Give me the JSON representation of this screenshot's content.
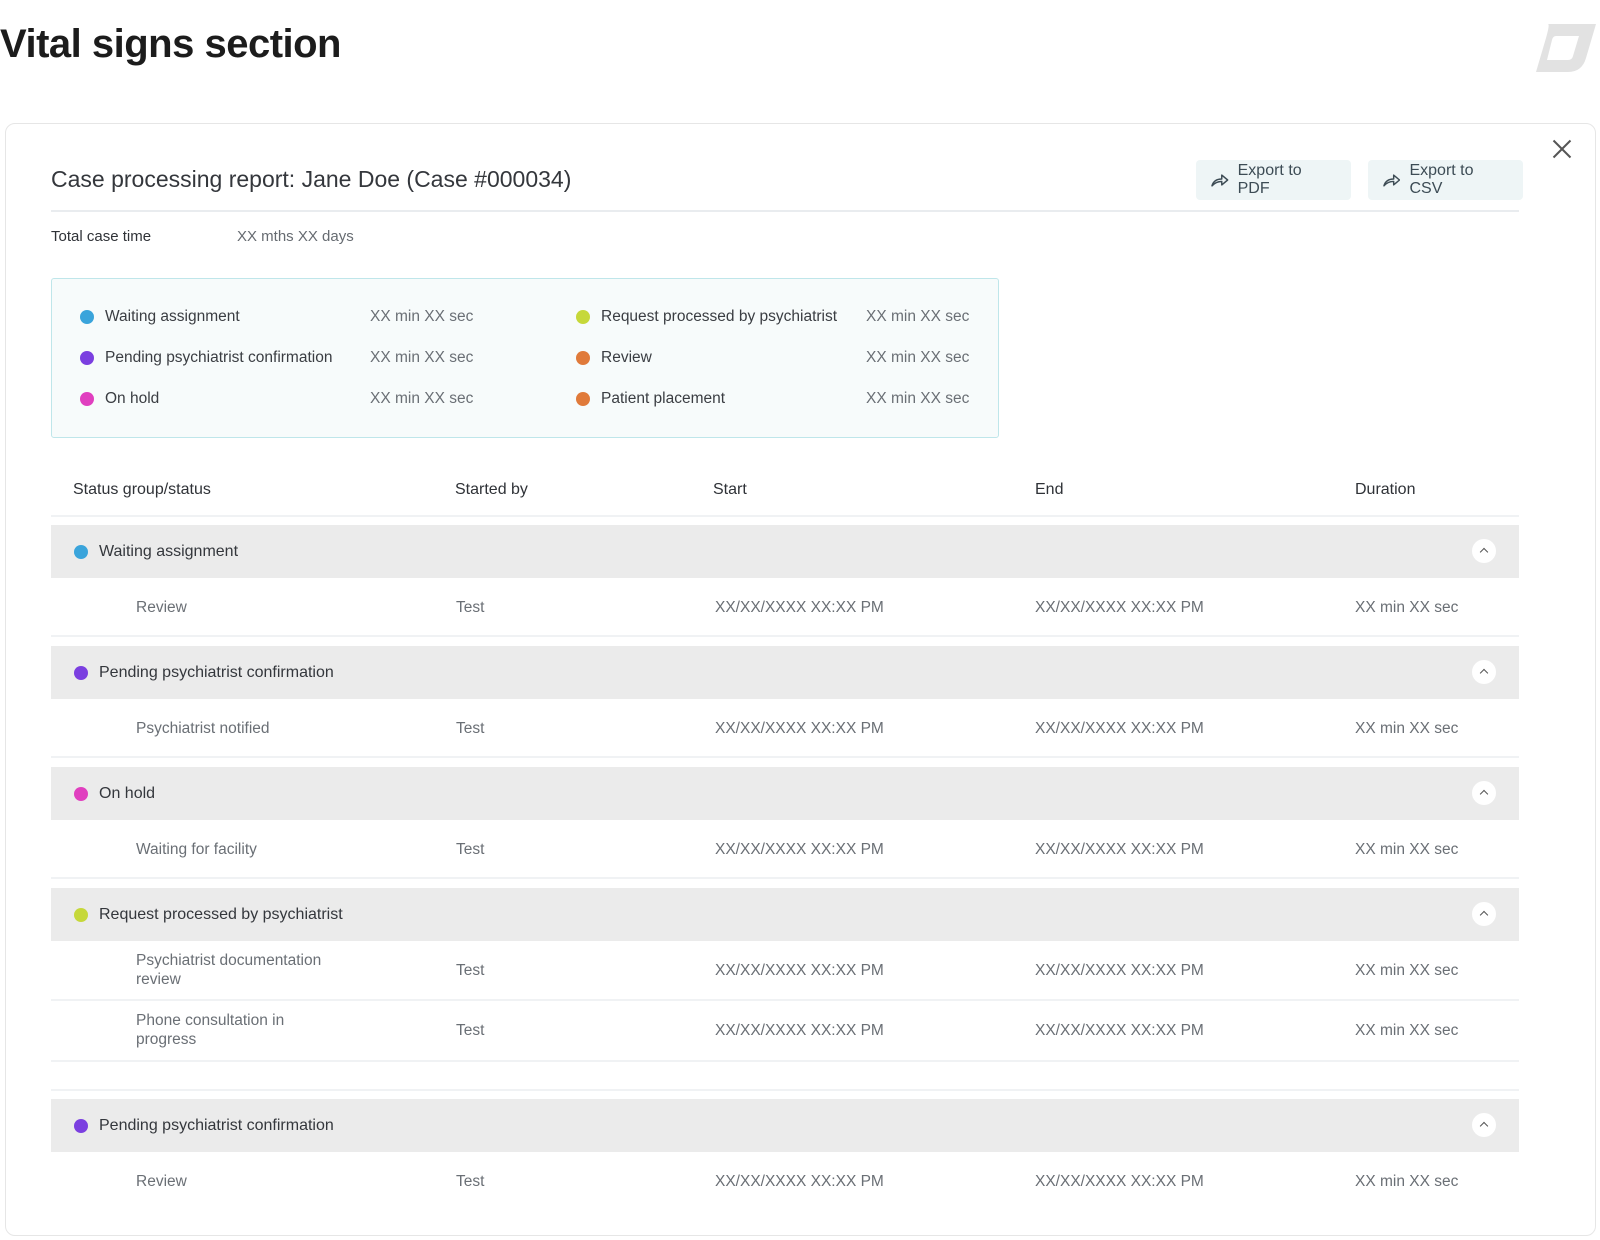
{
  "page_title": "Vital signs section",
  "report": {
    "title": "Case processing report: Jane Doe (Case #000034)",
    "export_pdf": "Export to PDF",
    "export_csv": "Export to CSV",
    "total_label": "Total case time",
    "total_value": "XX mths XX days"
  },
  "colors": {
    "blue": "#3aa4db",
    "purple": "#7b3fe0",
    "pink": "#e03fbf",
    "lime": "#c6d83a",
    "orange": "#e07a3a"
  },
  "summary": [
    {
      "label": "Waiting assignment",
      "value": "XX min XX sec",
      "color": "#3aa4db"
    },
    {
      "label": "Pending psychiatrist confirmation",
      "value": "XX min XX sec",
      "color": "#7b3fe0"
    },
    {
      "label": "On hold",
      "value": "XX min XX sec",
      "color": "#e03fbf"
    },
    {
      "label": "Request processed by psychiatrist",
      "value": "XX min XX sec",
      "color": "#c6d83a"
    },
    {
      "label": "Review",
      "value": "XX min XX sec",
      "color": "#e07a3a"
    },
    {
      "label": "Patient placement",
      "value": "XX min XX sec",
      "color": "#e07a3a"
    }
  ],
  "table": {
    "headers": [
      "Status group/status",
      "Started by",
      "Start",
      "End",
      "Duration"
    ],
    "groups": [
      {
        "label": "Waiting assignment",
        "color": "#3aa4db",
        "rows": [
          {
            "status": "Review",
            "by": "Test",
            "start": "XX/XX/XXXX XX:XX PM",
            "end": "XX/XX/XXXX XX:XX PM",
            "duration": "XX min XX sec"
          }
        ]
      },
      {
        "label": "Pending psychiatrist confirmation",
        "color": "#7b3fe0",
        "rows": [
          {
            "status": "Psychiatrist notified",
            "by": "Test",
            "start": "XX/XX/XXXX XX:XX PM",
            "end": "XX/XX/XXXX XX:XX PM",
            "duration": "XX min XX sec"
          }
        ]
      },
      {
        "label": "On hold",
        "color": "#e03fbf",
        "rows": [
          {
            "status": "Waiting for facility",
            "by": "Test",
            "start": "XX/XX/XXXX XX:XX PM",
            "end": "XX/XX/XXXX XX:XX PM",
            "duration": "XX min XX sec"
          }
        ]
      },
      {
        "label": "Request processed by psychiatrist",
        "color": "#c6d83a",
        "rows": [
          {
            "status": "Psychiatrist documentation review",
            "by": "Test",
            "start": "XX/XX/XXXX XX:XX PM",
            "end": "XX/XX/XXXX XX:XX PM",
            "duration": "XX min XX sec"
          },
          {
            "status": "Phone consultation in progress",
            "by": "Test",
            "start": "XX/XX/XXXX XX:XX PM",
            "end": "XX/XX/XXXX XX:XX PM",
            "duration": "XX min XX sec"
          }
        ]
      },
      {
        "label": "Pending psychiatrist confirmation",
        "color": "#7b3fe0",
        "rows": [
          {
            "status": "Review",
            "by": "Test",
            "start": "XX/XX/XXXX XX:XX PM",
            "end": "XX/XX/XXXX XX:XX PM",
            "duration": "XX min XX sec"
          }
        ]
      }
    ]
  }
}
